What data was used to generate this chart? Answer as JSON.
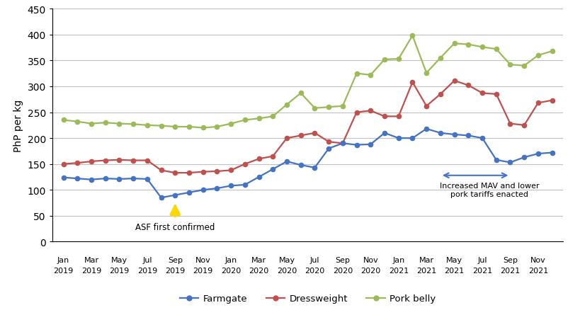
{
  "ylabel": "PhP per kg",
  "ylim": [
    0,
    450
  ],
  "yticks": [
    0,
    50,
    100,
    150,
    200,
    250,
    300,
    350,
    400,
    450
  ],
  "tick_months": [
    "Jan",
    "Mar",
    "May",
    "Jul",
    "Sep",
    "Nov",
    "Jan",
    "Mar",
    "May",
    "Jul",
    "Sep",
    "Nov",
    "Jan",
    "Mar",
    "May",
    "Jul",
    "Sep",
    "Nov"
  ],
  "tick_years": [
    "2019",
    "2019",
    "2019",
    "2019",
    "2019",
    "2019",
    "2020",
    "2020",
    "2020",
    "2020",
    "2020",
    "2020",
    "2021",
    "2021",
    "2021",
    "2021",
    "2021",
    "2021"
  ],
  "farmgate": [
    124,
    122,
    120,
    122,
    121,
    122,
    121,
    85,
    90,
    95,
    100,
    103,
    108,
    110,
    125,
    140,
    155,
    148,
    143,
    180,
    190,
    187,
    188,
    210,
    200,
    200,
    218,
    210,
    207,
    205,
    200,
    158,
    153,
    163,
    170,
    172
  ],
  "dressweight": [
    150,
    152,
    155,
    157,
    158,
    157,
    157,
    138,
    133,
    133,
    135,
    136,
    138,
    150,
    160,
    165,
    200,
    205,
    210,
    193,
    190,
    250,
    253,
    242,
    242,
    308,
    262,
    285,
    311,
    302,
    287,
    285,
    228,
    225,
    268,
    273
  ],
  "pork_belly": [
    235,
    232,
    228,
    230,
    228,
    227,
    225,
    224,
    222,
    222,
    220,
    222,
    228,
    235,
    238,
    242,
    265,
    287,
    258,
    260,
    262,
    325,
    322,
    352,
    353,
    398,
    326,
    355,
    383,
    381,
    376,
    372,
    342,
    340,
    360,
    368
  ],
  "farmgate_color": "#4472C4",
  "dressweight_color": "#C0504D",
  "pork_belly_color": "#9BBB59",
  "background_color": "#FFFFFF",
  "grid_color": "#C0C0C0",
  "asf_text": "ASF first confirmed",
  "mav_text": "Increased MAV and lower\npork tariffs enacted"
}
